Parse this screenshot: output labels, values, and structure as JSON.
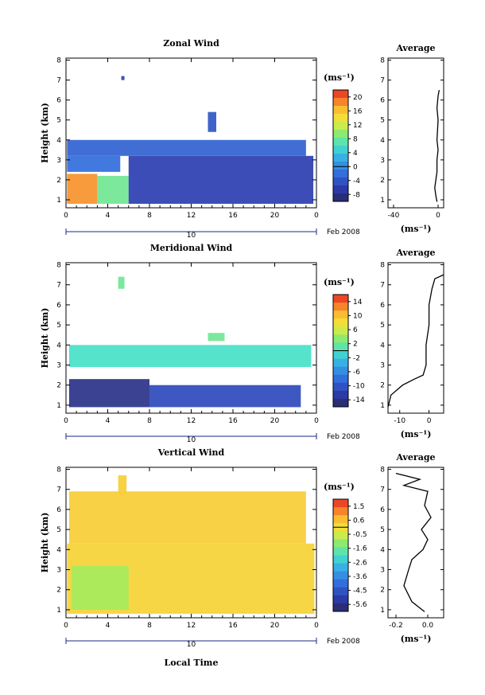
{
  "chart_data": [
    {
      "type": "heatmap",
      "title": "Zonal Wind",
      "ylabel": "Height (km)",
      "xlabel": "",
      "x_ticks": [
        "0",
        "4",
        "8",
        "12",
        "16",
        "20",
        "0"
      ],
      "y_ticks": [
        "1",
        "2",
        "3",
        "4",
        "5",
        "6",
        "7",
        "8"
      ],
      "xlim": [
        0,
        24
      ],
      "ylim": [
        0.6,
        8.1
      ],
      "date_label": "10",
      "date_suffix": "Feb 2008",
      "colorbar": {
        "unit": "(ms⁻¹)",
        "ticks": [
          "20",
          "16",
          "12",
          "8",
          "4",
          "0",
          "-4",
          "-8"
        ],
        "range": [
          -10,
          22
        ]
      },
      "regions": [
        {
          "x": [
            0.1,
            3.0
          ],
          "y": [
            0.8,
            2.3
          ],
          "value": 18
        },
        {
          "x": [
            3.0,
            6.0
          ],
          "y": [
            0.8,
            2.2
          ],
          "value": 8
        },
        {
          "x": [
            6.0,
            23.7
          ],
          "y": [
            0.8,
            3.2
          ],
          "value": -6
        },
        {
          "x": [
            0.1,
            5.2
          ],
          "y": [
            2.4,
            3.2
          ],
          "value": -2
        },
        {
          "x": [
            0.1,
            23.0
          ],
          "y": [
            3.2,
            4.0
          ],
          "value": -3
        },
        {
          "x": [
            13.6,
            14.4
          ],
          "y": [
            4.4,
            5.4
          ],
          "value": -4
        },
        {
          "x": [
            5.3,
            5.6
          ],
          "y": [
            7.0,
            7.2
          ],
          "value": -6
        }
      ],
      "average_profile": {
        "title": "Average",
        "x_ticks": [
          "-40",
          "0"
        ],
        "xlim": [
          -45,
          5
        ],
        "unit": "(ms⁻¹)",
        "points": [
          [
            -1,
            0.9
          ],
          [
            -2,
            1.2
          ],
          [
            -3,
            1.6
          ],
          [
            -2,
            2.0
          ],
          [
            -1,
            2.4
          ],
          [
            -1,
            3.0
          ],
          [
            0,
            3.5
          ],
          [
            -1,
            4.0
          ],
          [
            0,
            5.0
          ],
          [
            -1,
            5.6
          ],
          [
            0,
            6.2
          ],
          [
            1,
            6.5
          ]
        ]
      }
    },
    {
      "type": "heatmap",
      "title": "Meridional Wind",
      "ylabel": "Height (km)",
      "xlabel": "",
      "x_ticks": [
        "0",
        "4",
        "8",
        "12",
        "16",
        "20",
        "0"
      ],
      "y_ticks": [
        "1",
        "2",
        "3",
        "4",
        "5",
        "6",
        "7",
        "8"
      ],
      "xlim": [
        0,
        24
      ],
      "ylim": [
        0.6,
        8.1
      ],
      "date_label": "10",
      "date_suffix": "Feb 2008",
      "colorbar": {
        "unit": "(ms⁻¹)",
        "ticks": [
          "14",
          "10",
          "6",
          "2",
          "-2",
          "-6",
          "-10",
          "-14"
        ],
        "range": [
          -16,
          16
        ]
      },
      "regions": [
        {
          "x": [
            0.3,
            8.0
          ],
          "y": [
            0.9,
            2.3
          ],
          "value": -14
        },
        {
          "x": [
            8.0,
            22.5
          ],
          "y": [
            0.9,
            2.0
          ],
          "value": -11
        },
        {
          "x": [
            0.3,
            23.5
          ],
          "y": [
            2.9,
            4.0
          ],
          "value": 0
        },
        {
          "x": [
            13.6,
            15.2
          ],
          "y": [
            4.2,
            4.6
          ],
          "value": 2
        },
        {
          "x": [
            5.0,
            5.6
          ],
          "y": [
            6.8,
            7.4
          ],
          "value": 2
        }
      ],
      "average_profile": {
        "title": "Average",
        "x_ticks": [
          "-10",
          "0"
        ],
        "xlim": [
          -14,
          5
        ],
        "unit": "(ms⁻¹)",
        "points": [
          [
            -14,
            0.9
          ],
          [
            -13,
            1.5
          ],
          [
            -9,
            2.0
          ],
          [
            -5,
            2.3
          ],
          [
            -2,
            2.5
          ],
          [
            -1,
            3.0
          ],
          [
            -1,
            4.0
          ],
          [
            0,
            5.0
          ],
          [
            0,
            6.0
          ],
          [
            1,
            6.8
          ],
          [
            2,
            7.3
          ],
          [
            5,
            7.5
          ]
        ]
      }
    },
    {
      "type": "heatmap",
      "title": "Vertical Wind",
      "ylabel": "Height (km)",
      "xlabel": "Local Time",
      "x_ticks": [
        "0",
        "4",
        "8",
        "12",
        "16",
        "20",
        "0"
      ],
      "y_ticks": [
        "1",
        "2",
        "3",
        "4",
        "5",
        "6",
        "7",
        "8"
      ],
      "xlim": [
        0,
        24
      ],
      "ylim": [
        0.6,
        8.1
      ],
      "date_label": "10",
      "date_suffix": "Feb 2008",
      "colorbar": {
        "unit": "(ms⁻¹)",
        "ticks": [
          "1.5",
          "0.6",
          "-0.5",
          "-1.6",
          "-2.6",
          "-3.6",
          "-4.5",
          "-5.6"
        ],
        "range": [
          -6,
          2
        ]
      },
      "regions": [
        {
          "x": [
            0.1,
            23.8
          ],
          "y": [
            0.8,
            4.3
          ],
          "value": 0.2
        },
        {
          "x": [
            0.5,
            6.0
          ],
          "y": [
            1.0,
            3.2
          ],
          "value": -0.9
        },
        {
          "x": [
            0.3,
            23.0
          ],
          "y": [
            4.3,
            6.9
          ],
          "value": 0.3
        },
        {
          "x": [
            5.0,
            5.8
          ],
          "y": [
            6.8,
            7.7
          ],
          "value": 0.3
        }
      ],
      "average_profile": {
        "title": "Average",
        "x_ticks": [
          "-0.2",
          "0.0"
        ],
        "xlim": [
          -0.25,
          0.1
        ],
        "unit": "(ms⁻¹)",
        "points": [
          [
            -0.02,
            0.9
          ],
          [
            -0.1,
            1.4
          ],
          [
            -0.15,
            2.2
          ],
          [
            -0.12,
            3.0
          ],
          [
            -0.1,
            3.5
          ],
          [
            -0.03,
            4.0
          ],
          [
            0.0,
            4.5
          ],
          [
            -0.04,
            5.0
          ],
          [
            0.02,
            5.6
          ],
          [
            -0.02,
            6.2
          ],
          [
            0.0,
            6.9
          ],
          [
            -0.15,
            7.2
          ],
          [
            -0.05,
            7.5
          ],
          [
            -0.2,
            7.8
          ]
        ]
      }
    }
  ]
}
